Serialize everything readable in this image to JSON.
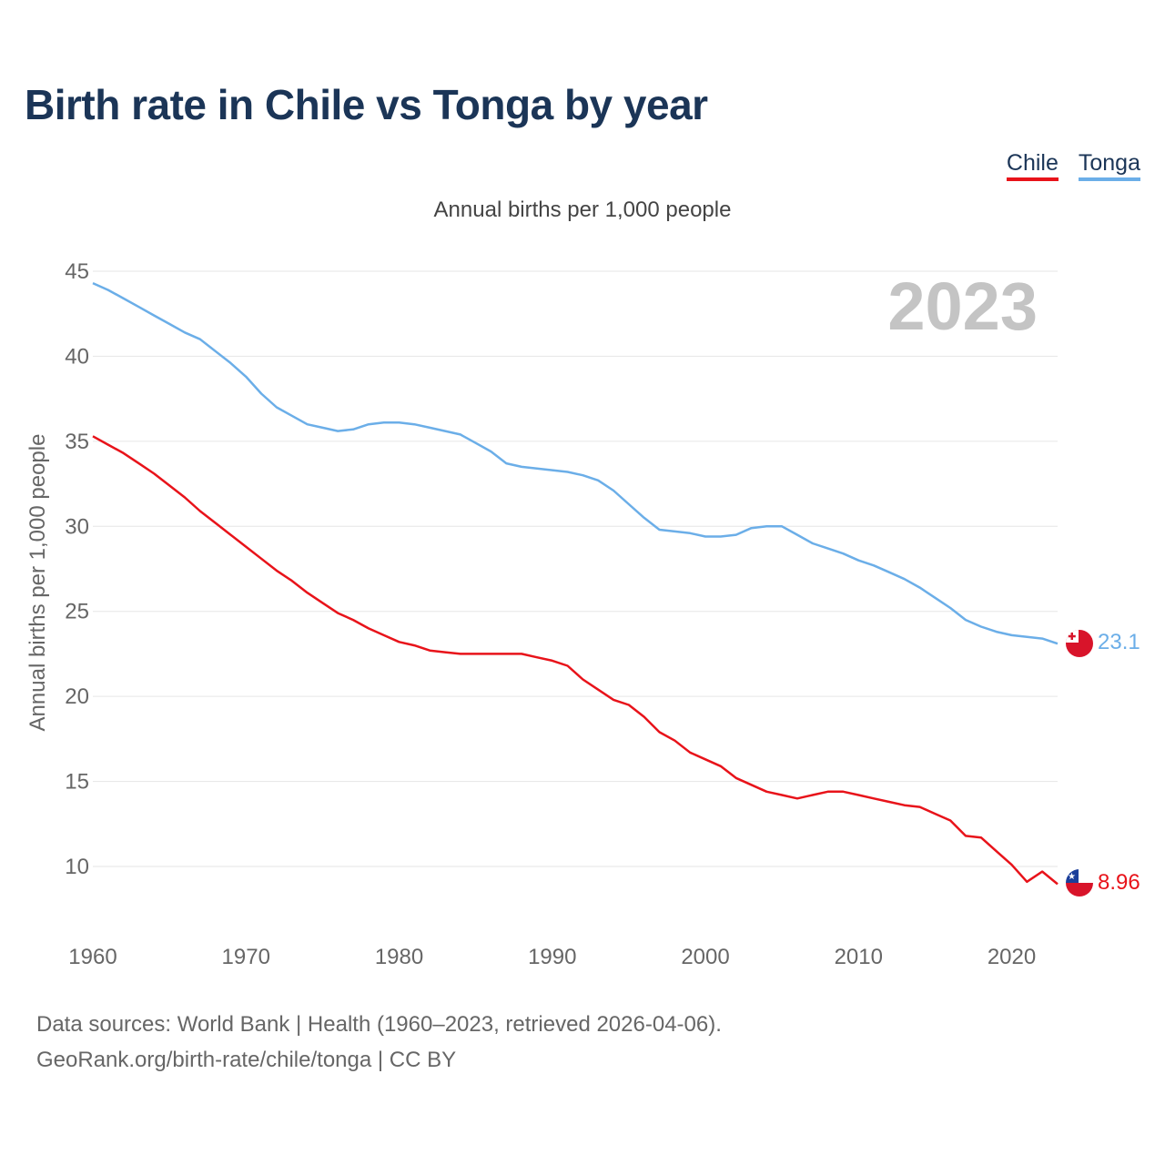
{
  "title": "Birth rate in Chile vs Tonga by year",
  "subtitle": "Annual births per 1,000 people",
  "legend": [
    "Chile",
    "Tonga"
  ],
  "year_watermark": "2023",
  "end_labels": {
    "chile": "8.96",
    "tonga": "23.1"
  },
  "source": {
    "line1": "Data sources: World Bank | Health (1960–2023, retrieved 2026-04-06).",
    "line2": "GeoRank.org/birth-rate/chile/tonga | CC BY"
  },
  "colors": {
    "chile": "#e8131a",
    "tonga": "#6baee8",
    "title": "#1b3557",
    "grid": "#e6e6e6"
  },
  "chart_data": {
    "type": "line",
    "title": "Birth rate in Chile vs Tonga by year",
    "xlabel": "",
    "ylabel": "Annual births per 1,000 people",
    "xlim": [
      1960,
      2023
    ],
    "ylim": [
      7,
      45
    ],
    "yticks": [
      10,
      15,
      20,
      25,
      30,
      35,
      40,
      45
    ],
    "xticks": [
      1960,
      1970,
      1980,
      1990,
      2000,
      2010,
      2020
    ],
    "x": [
      1960,
      1961,
      1962,
      1963,
      1964,
      1965,
      1966,
      1967,
      1968,
      1969,
      1970,
      1971,
      1972,
      1973,
      1974,
      1975,
      1976,
      1977,
      1978,
      1979,
      1980,
      1981,
      1982,
      1983,
      1984,
      1985,
      1986,
      1987,
      1988,
      1989,
      1990,
      1991,
      1992,
      1993,
      1994,
      1995,
      1996,
      1997,
      1998,
      1999,
      2000,
      2001,
      2002,
      2003,
      2004,
      2005,
      2006,
      2007,
      2008,
      2009,
      2010,
      2011,
      2012,
      2013,
      2014,
      2015,
      2016,
      2017,
      2018,
      2019,
      2020,
      2021,
      2022,
      2023
    ],
    "series": [
      {
        "name": "Chile",
        "color": "#e8131a",
        "values": [
          35.3,
          34.8,
          34.3,
          33.7,
          33.1,
          32.4,
          31.7,
          30.9,
          30.2,
          29.5,
          28.8,
          28.1,
          27.4,
          26.8,
          26.1,
          25.5,
          24.9,
          24.5,
          24.0,
          23.6,
          23.2,
          23.0,
          22.7,
          22.6,
          22.5,
          22.5,
          22.5,
          22.5,
          22.5,
          22.3,
          22.1,
          21.8,
          21.0,
          20.4,
          19.8,
          19.5,
          18.8,
          17.9,
          17.4,
          16.7,
          16.3,
          15.9,
          15.2,
          14.8,
          14.4,
          14.2,
          14.0,
          14.2,
          14.4,
          14.4,
          14.2,
          14.0,
          13.8,
          13.6,
          13.5,
          13.1,
          12.7,
          11.8,
          11.7,
          10.9,
          10.1,
          9.1,
          9.7,
          8.96
        ]
      },
      {
        "name": "Tonga",
        "color": "#6baee8",
        "values": [
          44.3,
          43.9,
          43.4,
          42.9,
          42.4,
          41.9,
          41.4,
          41.0,
          40.3,
          39.6,
          38.8,
          37.8,
          37.0,
          36.5,
          36.0,
          35.8,
          35.6,
          35.7,
          36.0,
          36.1,
          36.1,
          36.0,
          35.8,
          35.6,
          35.4,
          34.9,
          34.4,
          33.7,
          33.5,
          33.4,
          33.3,
          33.2,
          33.0,
          32.7,
          32.1,
          31.3,
          30.5,
          29.8,
          29.7,
          29.6,
          29.4,
          29.4,
          29.5,
          29.9,
          30.0,
          30.0,
          29.5,
          29.0,
          28.7,
          28.4,
          28.0,
          27.7,
          27.3,
          26.9,
          26.4,
          25.8,
          25.2,
          24.5,
          24.1,
          23.8,
          23.6,
          23.5,
          23.4,
          23.1
        ]
      }
    ],
    "end_values": {
      "Chile": 8.96,
      "Tonga": 23.1
    }
  }
}
